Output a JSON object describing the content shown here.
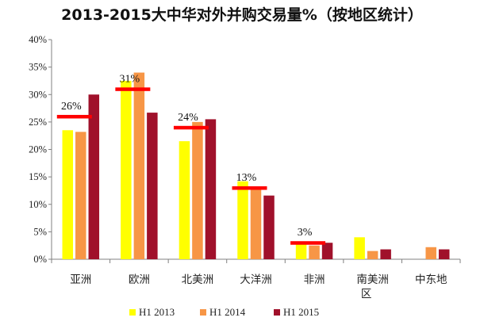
{
  "chart_data": {
    "type": "bar",
    "title": "2013-2015大中华对外并购交易量%（按地区统计）",
    "xlabel": "",
    "ylabel": "",
    "ylim": [
      0,
      40
    ],
    "yticks": [
      "0%",
      "5%",
      "10%",
      "15%",
      "20%",
      "25%",
      "30%",
      "35%",
      "40%"
    ],
    "categories": [
      "亚洲",
      "欧洲",
      "北美洲",
      "大洋洲",
      "非洲",
      "南美洲区",
      "中东地"
    ],
    "series": [
      {
        "name": "H1 2013",
        "color": "#ffff00",
        "values": [
          23.5,
          32.5,
          21.5,
          14.2,
          3.0,
          4.0,
          0
        ]
      },
      {
        "name": "H1 2014",
        "color": "#f79646",
        "values": [
          23.2,
          34.0,
          25.0,
          13.0,
          2.5,
          1.5,
          2.2
        ]
      },
      {
        "name": "H1 2015",
        "color": "#a0112b",
        "values": [
          30.0,
          26.7,
          25.5,
          11.6,
          3.0,
          1.8,
          1.8
        ]
      }
    ],
    "averages": {
      "color": "#ff0000",
      "values": [
        26,
        31,
        24,
        13,
        3,
        null,
        null
      ],
      "labels": [
        "26%",
        "31%",
        "24%",
        "13%",
        "3%",
        "",
        ""
      ]
    },
    "legend_position": "bottom",
    "grid": false
  }
}
